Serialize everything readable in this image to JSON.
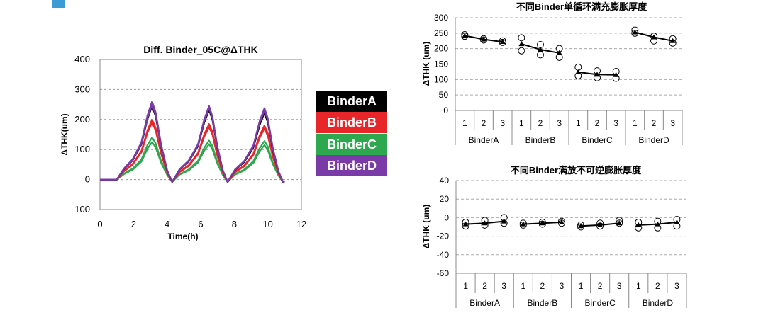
{
  "colors": {
    "accent_square": "#3a9bd5"
  },
  "chart_data": [
    {
      "type": "line",
      "title": "Diff. Binder_05C@ΔTHK",
      "xlabel": "Time(h)",
      "ylabel": "ΔTHK(um)",
      "xlim": [
        0,
        12
      ],
      "ylim": [
        -100,
        400
      ],
      "xticks": [
        "0",
        "2",
        "4",
        "6",
        "8",
        "10",
        "12"
      ],
      "yticks": [
        "-100",
        "0",
        "100",
        "200",
        "300",
        "400"
      ],
      "legend_position": "right",
      "grid": "horizontal dashed",
      "cycles": [
        {
          "start": 1.0,
          "peak": 3.1,
          "end": 4.3
        },
        {
          "start": 4.3,
          "peak": 6.5,
          "end": 7.6
        },
        {
          "start": 7.6,
          "peak": 9.8,
          "end": 10.9
        }
      ],
      "series": [
        {
          "name": "BinderA",
          "color": "#000000",
          "peaks": [
            [
              258,
              245
            ],
            [
              243,
              232
            ],
            [
              232,
              222
            ]
          ]
        },
        {
          "name": "BinderB",
          "color": "#e8262a",
          "peaks": [
            [
              200,
              190
            ],
            [
              185,
              175
            ],
            [
              180,
              170
            ]
          ]
        },
        {
          "name": "BinderC",
          "color": "#2ea84f",
          "peaks": [
            [
              140,
              125
            ],
            [
              130,
              118
            ],
            [
              128,
              115
            ]
          ]
        },
        {
          "name": "BinderD",
          "color": "#7a3aa8",
          "peaks": [
            [
              260,
              250
            ],
            [
              245,
              238
            ],
            [
              238,
              230
            ]
          ]
        }
      ]
    },
    {
      "type": "scatter",
      "title": "不同Binder单循环满充膨胀厚度",
      "ylabel": "ΔTHK (um)",
      "ylim": [
        0,
        300
      ],
      "yticks": [
        "0",
        "50",
        "100",
        "150",
        "200",
        "250",
        "300"
      ],
      "groups": [
        "BinderA",
        "BinderB",
        "BinderC",
        "BinderD"
      ],
      "subcategories": [
        "1",
        "2",
        "3"
      ],
      "points": [
        [
          [
            245,
            240
          ],
          [
            232,
            228
          ],
          [
            225,
            220
          ]
        ],
        [
          [
            235,
            193
          ],
          [
            213,
            180
          ],
          [
            200,
            172
          ]
        ],
        [
          [
            140,
            112
          ],
          [
            128,
            106
          ],
          [
            126,
            104
          ]
        ],
        [
          [
            260,
            250
          ],
          [
            240,
            225
          ],
          [
            232,
            218
          ]
        ]
      ],
      "means": [
        [
          242,
          230,
          222
        ],
        [
          215,
          197,
          186
        ],
        [
          124,
          116,
          115
        ],
        [
          253,
          237,
          225
        ]
      ]
    },
    {
      "type": "scatter",
      "title": "不同Binder满放不可逆膨胀厚度",
      "ylabel": "ΔTHK (um)",
      "ylim": [
        -60,
        40
      ],
      "yticks": [
        "-60",
        "-40",
        "-20",
        "0",
        "20",
        "40"
      ],
      "groups": [
        "BinderA",
        "BinderB",
        "BinderC",
        "BinderD"
      ],
      "subcategories": [
        "1",
        "2",
        "3"
      ],
      "points": [
        [
          [
            -5,
            -9
          ],
          [
            -3,
            -8
          ],
          [
            0,
            -6
          ]
        ],
        [
          [
            -6,
            -8
          ],
          [
            -5,
            -7
          ],
          [
            -4,
            -6
          ]
        ],
        [
          [
            -8,
            -10
          ],
          [
            -6,
            -9
          ],
          [
            -3,
            -6
          ]
        ],
        [
          [
            -5,
            -11
          ],
          [
            -4,
            -11
          ],
          [
            -2,
            -9
          ]
        ]
      ],
      "means": [
        [
          -7,
          -6,
          -4
        ],
        [
          -7,
          -6,
          -5
        ],
        [
          -9,
          -8,
          -6
        ],
        [
          -8,
          -7,
          -5
        ]
      ]
    }
  ]
}
